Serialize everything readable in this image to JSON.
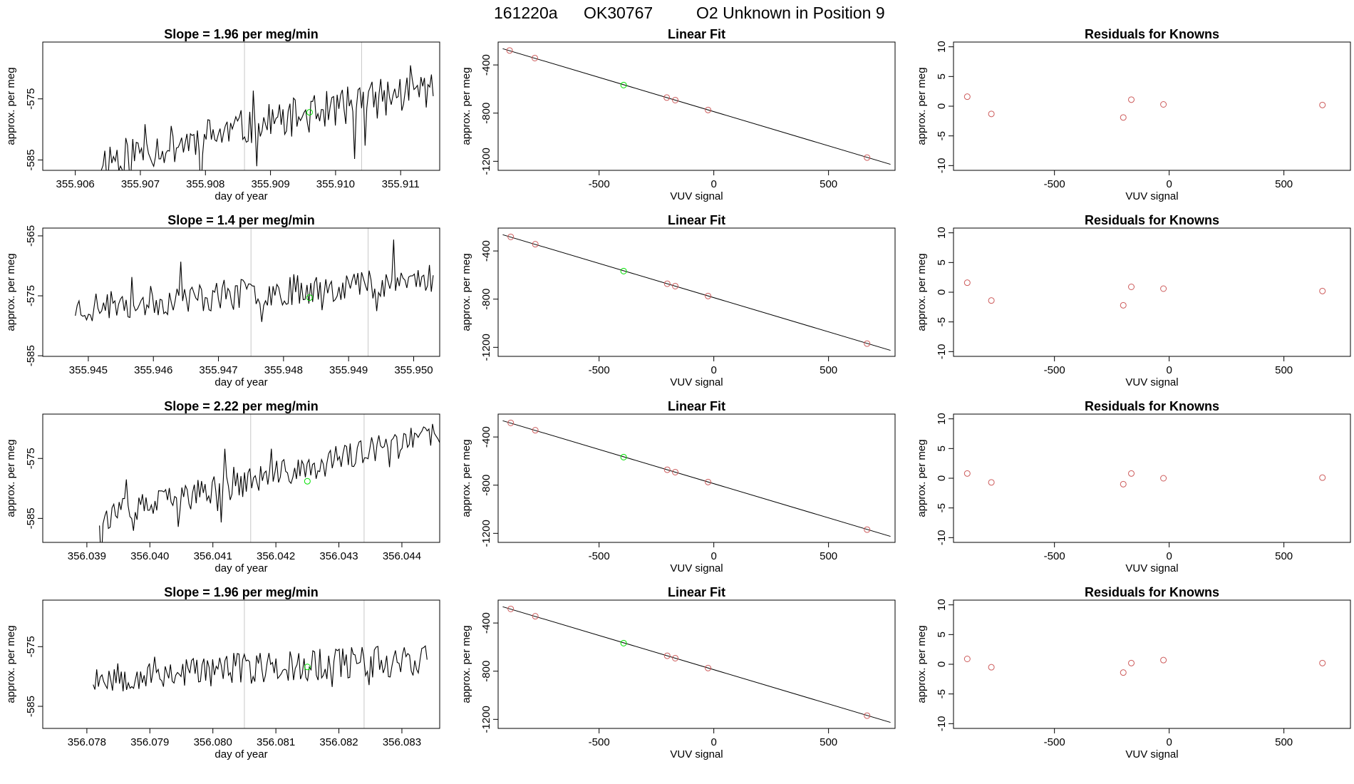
{
  "figure": {
    "title_parts": [
      "161220a",
      "OK30767",
      "O2 Unknown in Position  9"
    ]
  },
  "colors": {
    "known": "#cd5c5c",
    "unknown": "#00e000",
    "line": "#000000",
    "guide": "#c8c8c8"
  },
  "chart_data": [
    {
      "type": "line",
      "panel": "time-series",
      "row": 1,
      "title": "Slope =  1.96  per meg/min",
      "xlabel": "day of year",
      "ylabel": "approx. per meg",
      "xlim": [
        355.9055,
        355.9116
      ],
      "ylim": [
        -586.7,
        -565.7
      ],
      "xticks": [
        355.906,
        355.907,
        355.908,
        355.909,
        355.91,
        355.911
      ],
      "xtick_labels": [
        "355.906",
        "355.907",
        "355.908",
        "355.909",
        "355.910",
        "355.911"
      ],
      "yticks": [
        -575,
        -585
      ],
      "ytick_labels": [
        "-575",
        "-585"
      ],
      "x_start": 355.9064,
      "x_end": 355.9115,
      "trend_start": -585,
      "trend_end": -573,
      "noise": 3.2,
      "guides": [
        355.9086,
        355.9104
      ],
      "unknown_point": [
        355.9096,
        -577.2
      ],
      "seed": 11
    },
    {
      "type": "scatter",
      "panel": "linear-fit",
      "row": 1,
      "title": "Linear Fit",
      "xlabel": "VUV signal",
      "ylabel": "approx. per meg",
      "xlim": [
        -940,
        790
      ],
      "ylim": [
        -1275,
        -210
      ],
      "xticks": [
        -500,
        0,
        500
      ],
      "xtick_labels": [
        "-500",
        "0",
        "500"
      ],
      "yticks": [
        -400,
        -800,
        -1200
      ],
      "ytick_labels": [
        "-400",
        "-800",
        "-1200"
      ],
      "fit_line": {
        "x": [
          -920,
          770
        ],
        "y": [
          -265,
          -1225
        ]
      },
      "knowns": [
        [
          -890,
          -280
        ],
        [
          -780,
          -343
        ],
        [
          -205,
          -671
        ],
        [
          -168,
          -692
        ],
        [
          -25,
          -774
        ],
        [
          668,
          -1169
        ]
      ],
      "unknown": [
        -393,
        -567
      ]
    },
    {
      "type": "scatter",
      "panel": "residuals",
      "row": 1,
      "title": "Residuals for Knowns",
      "xlabel": "VUV signal",
      "ylabel": "approx. per meg",
      "xlim": [
        -940,
        790
      ],
      "ylim": [
        -10.8,
        10.8
      ],
      "xticks": [
        -500,
        0,
        500
      ],
      "xtick_labels": [
        "-500",
        "0",
        "500"
      ],
      "yticks": [
        10,
        5,
        0,
        -5,
        -10
      ],
      "ytick_labels": [
        "10",
        "5",
        "0",
        "-5",
        "-10"
      ],
      "knowns": [
        [
          -880,
          1.6
        ],
        [
          -775,
          -1.3
        ],
        [
          -200,
          -1.9
        ],
        [
          -165,
          1.1
        ],
        [
          -25,
          0.3
        ],
        [
          668,
          0.2
        ]
      ]
    },
    {
      "type": "line",
      "panel": "time-series",
      "row": 2,
      "title": "Slope =  1.4  per meg/min",
      "xlabel": "day of year",
      "ylabel": "approx. per meg",
      "xlim": [
        355.9443,
        355.9504
      ],
      "ylim": [
        -585.1,
        -563.7
      ],
      "xticks": [
        355.945,
        355.946,
        355.947,
        355.948,
        355.949,
        355.95
      ],
      "xtick_labels": [
        "355.945",
        "355.946",
        "355.947",
        "355.948",
        "355.949",
        "355.950"
      ],
      "yticks": [
        -565,
        -575,
        -585
      ],
      "ytick_labels": [
        "-565",
        "-575",
        "-585"
      ],
      "x_start": 355.9448,
      "x_end": 355.9503,
      "trend_start": -577,
      "trend_end": -572,
      "noise": 2.6,
      "guides": [
        355.9475,
        355.9493
      ],
      "unknown_point": [
        355.9484,
        -575.3
      ],
      "seed": 23
    },
    {
      "type": "scatter",
      "panel": "linear-fit",
      "row": 2,
      "title": "Linear Fit",
      "xlabel": "VUV signal",
      "ylabel": "approx. per meg",
      "xlim": [
        -940,
        790
      ],
      "ylim": [
        -1275,
        -210
      ],
      "xticks": [
        -500,
        0,
        500
      ],
      "xtick_labels": [
        "-500",
        "0",
        "500"
      ],
      "yticks": [
        -400,
        -800,
        -1200
      ],
      "ytick_labels": [
        "-400",
        "-800",
        "-1200"
      ],
      "fit_line": {
        "x": [
          -920,
          770
        ],
        "y": [
          -265,
          -1225
        ]
      },
      "knowns": [
        [
          -885,
          -283
        ],
        [
          -778,
          -344
        ],
        [
          -203,
          -672
        ],
        [
          -168,
          -692
        ],
        [
          -25,
          -774
        ],
        [
          668,
          -1169
        ]
      ],
      "unknown": [
        -393,
        -567
      ]
    },
    {
      "type": "scatter",
      "panel": "residuals",
      "row": 2,
      "title": "Residuals for Knowns",
      "xlabel": "VUV signal",
      "ylabel": "approx. per meg",
      "xlim": [
        -940,
        790
      ],
      "ylim": [
        -10.8,
        10.8
      ],
      "xticks": [
        -500,
        0,
        500
      ],
      "xtick_labels": [
        "-500",
        "0",
        "500"
      ],
      "yticks": [
        10,
        5,
        0,
        -5,
        -10
      ],
      "ytick_labels": [
        "10",
        "5",
        "0",
        "-5",
        "-10"
      ],
      "knowns": [
        [
          -880,
          1.6
        ],
        [
          -775,
          -1.4
        ],
        [
          -200,
          -2.2
        ],
        [
          -165,
          0.9
        ],
        [
          -25,
          0.6
        ],
        [
          668,
          0.2
        ]
      ]
    },
    {
      "type": "line",
      "panel": "time-series",
      "row": 3,
      "title": "Slope =  2.22  per meg/min",
      "xlabel": "day of year",
      "ylabel": "approx. per meg",
      "xlim": [
        356.0383,
        356.0446
      ],
      "ylim": [
        -589.0,
        -567.6
      ],
      "xticks": [
        356.039,
        356.04,
        356.041,
        356.042,
        356.043,
        356.044
      ],
      "xtick_labels": [
        "356.039",
        "356.040",
        "356.041",
        "356.042",
        "356.043",
        "356.044"
      ],
      "yticks": [
        -575,
        -585
      ],
      "ytick_labels": [
        "-575",
        "-585"
      ],
      "x_start": 356.0392,
      "x_end": 356.0446,
      "trend_start": -585,
      "trend_end": -571,
      "noise": 2.4,
      "guides": [
        356.0416,
        356.0434
      ],
      "unknown_point": [
        356.0425,
        -578.8
      ],
      "seed": 37
    },
    {
      "type": "scatter",
      "panel": "linear-fit",
      "row": 3,
      "title": "Linear Fit",
      "xlabel": "VUV signal",
      "ylabel": "approx. per meg",
      "xlim": [
        -940,
        790
      ],
      "ylim": [
        -1275,
        -210
      ],
      "xticks": [
        -500,
        0,
        500
      ],
      "xtick_labels": [
        "-500",
        "0",
        "500"
      ],
      "yticks": [
        -400,
        -800,
        -1200
      ],
      "ytick_labels": [
        "-400",
        "-800",
        "-1200"
      ],
      "fit_line": {
        "x": [
          -920,
          770
        ],
        "y": [
          -265,
          -1225
        ]
      },
      "knowns": [
        [
          -885,
          -283
        ],
        [
          -778,
          -344
        ],
        [
          -203,
          -672
        ],
        [
          -168,
          -692
        ],
        [
          -25,
          -774
        ],
        [
          668,
          -1169
        ]
      ],
      "unknown": [
        -393,
        -567
      ]
    },
    {
      "type": "scatter",
      "panel": "residuals",
      "row": 3,
      "title": "Residuals for Knowns",
      "xlabel": "VUV signal",
      "ylabel": "approx. per meg",
      "xlim": [
        -940,
        790
      ],
      "ylim": [
        -10.8,
        10.8
      ],
      "xticks": [
        -500,
        0,
        500
      ],
      "xtick_labels": [
        "-500",
        "0",
        "500"
      ],
      "yticks": [
        10,
        5,
        0,
        -5,
        -10
      ],
      "ytick_labels": [
        "10",
        "5",
        "0",
        "-5",
        "-10"
      ],
      "knowns": [
        [
          -880,
          0.8
        ],
        [
          -775,
          -0.7
        ],
        [
          -200,
          -1.0
        ],
        [
          -165,
          0.8
        ],
        [
          -25,
          0.0
        ],
        [
          668,
          0.1
        ]
      ]
    },
    {
      "type": "line",
      "panel": "time-series",
      "row": 4,
      "title": "Slope =  1.96  per meg/min",
      "xlabel": "day of year",
      "ylabel": "approx. per meg",
      "xlim": [
        356.0773,
        356.0836
      ],
      "ylim": [
        -588.7,
        -567.2
      ],
      "xticks": [
        356.078,
        356.079,
        356.08,
        356.081,
        356.082,
        356.083
      ],
      "xtick_labels": [
        "356.078",
        "356.079",
        "356.080",
        "356.081",
        "356.082",
        "356.083"
      ],
      "yticks": [
        -575,
        -585
      ],
      "ytick_labels": [
        "-575",
        "-585"
      ],
      "x_start": 356.0781,
      "x_end": 356.0834,
      "trend_start": -580,
      "trend_end": -577,
      "noise": 2.8,
      "guides": [
        356.0805,
        356.0824
      ],
      "unknown_point": [
        356.0815,
        -578.4
      ],
      "seed": 53
    },
    {
      "type": "scatter",
      "panel": "linear-fit",
      "row": 4,
      "title": "Linear Fit",
      "xlabel": "VUV signal",
      "ylabel": "approx. per meg",
      "xlim": [
        -940,
        790
      ],
      "ylim": [
        -1275,
        -210
      ],
      "xticks": [
        -500,
        0,
        500
      ],
      "xtick_labels": [
        "-500",
        "0",
        "500"
      ],
      "yticks": [
        -400,
        -800,
        -1200
      ],
      "ytick_labels": [
        "-400",
        "-800",
        "-1200"
      ],
      "fit_line": {
        "x": [
          -920,
          770
        ],
        "y": [
          -265,
          -1225
        ]
      },
      "knowns": [
        [
          -885,
          -283
        ],
        [
          -778,
          -344
        ],
        [
          -203,
          -672
        ],
        [
          -168,
          -692
        ],
        [
          -25,
          -774
        ],
        [
          668,
          -1169
        ]
      ],
      "unknown": [
        -393,
        -567
      ]
    },
    {
      "type": "scatter",
      "panel": "residuals",
      "row": 4,
      "title": "Residuals for Knowns",
      "xlabel": "VUV signal",
      "ylabel": "approx. per meg",
      "xlim": [
        -940,
        790
      ],
      "ylim": [
        -10.8,
        10.8
      ],
      "xticks": [
        -500,
        0,
        500
      ],
      "xtick_labels": [
        "-500",
        "0",
        "500"
      ],
      "yticks": [
        10,
        5,
        0,
        -5,
        -10
      ],
      "ytick_labels": [
        "10",
        "5",
        "0",
        "-5",
        "-10"
      ],
      "knowns": [
        [
          -880,
          0.9
        ],
        [
          -775,
          -0.5
        ],
        [
          -200,
          -1.4
        ],
        [
          -165,
          0.2
        ],
        [
          -25,
          0.7
        ],
        [
          668,
          0.2
        ]
      ]
    }
  ]
}
